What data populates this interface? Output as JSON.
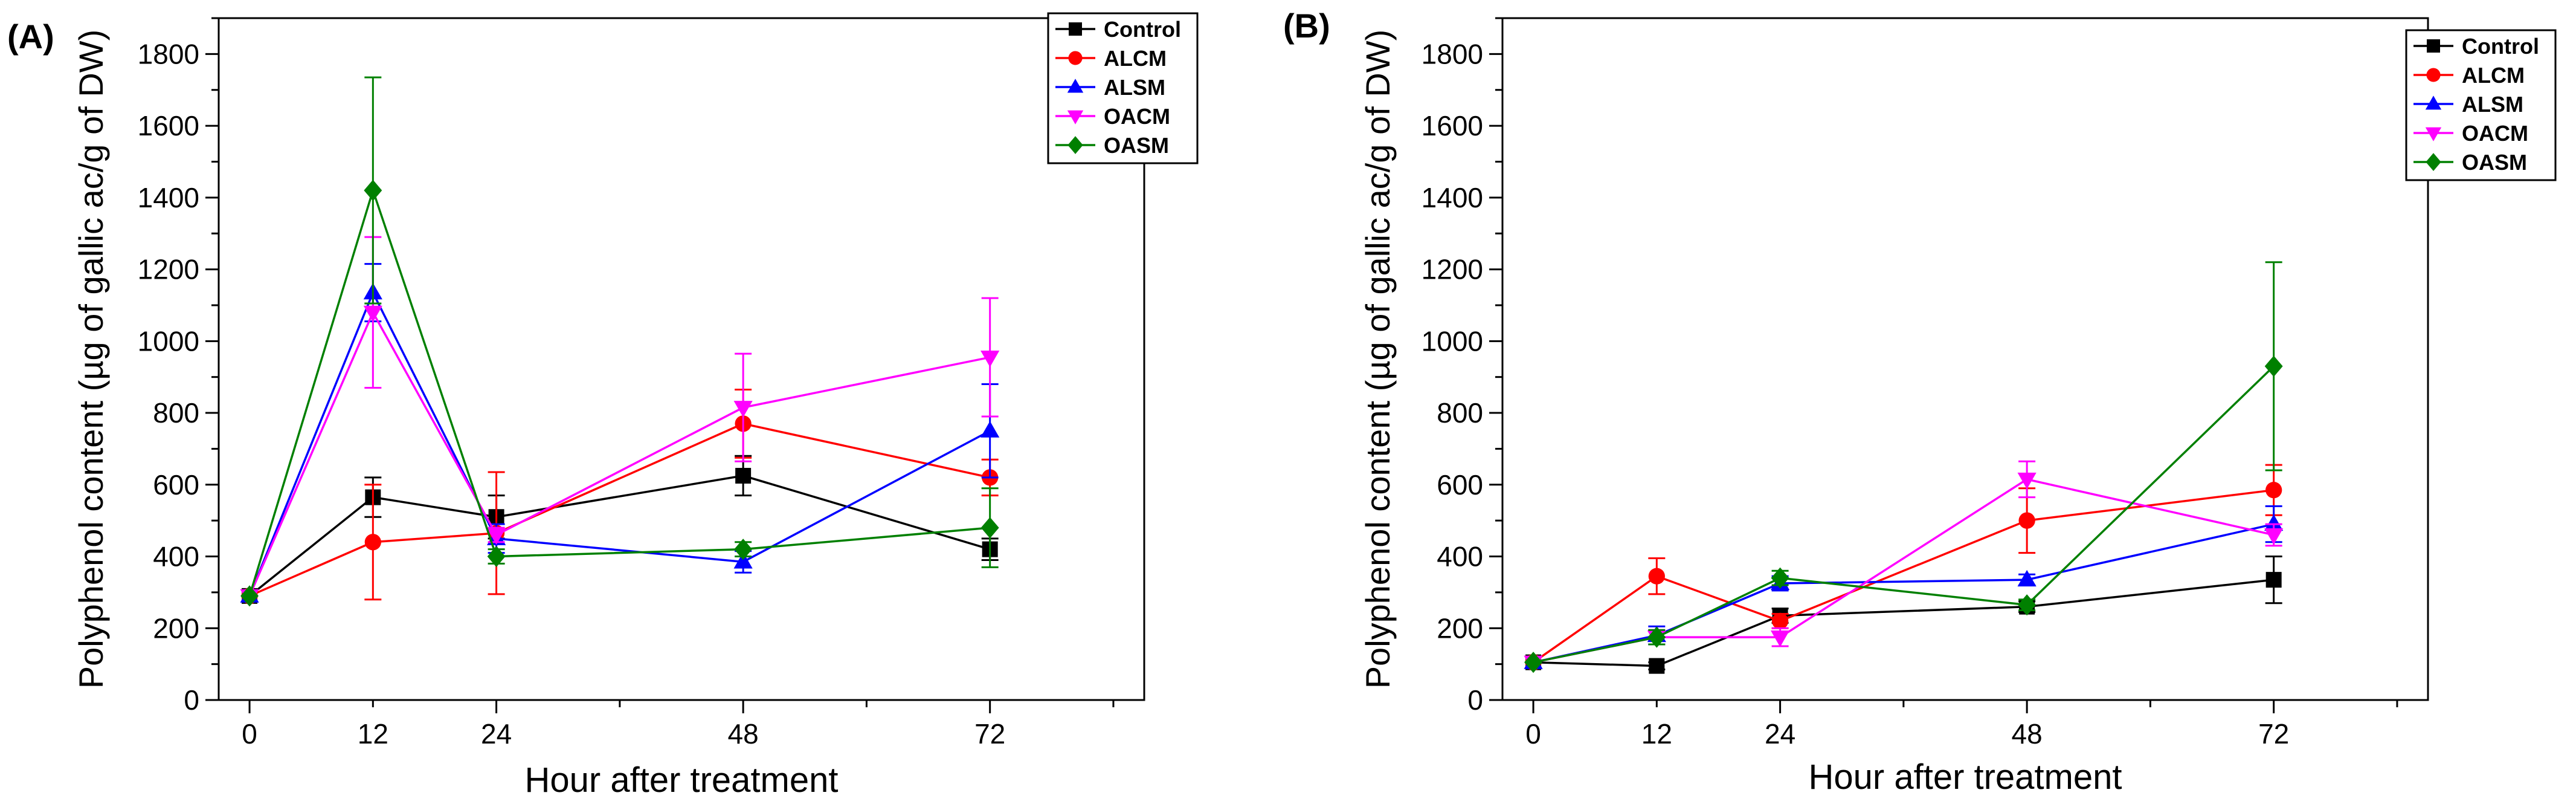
{
  "chart_data": [
    {
      "panel_label": "(A)",
      "type": "line",
      "xlabel": "Hour after treatment",
      "ylabel": "Polyphenol content (µg of gallic ac/g of DW)",
      "x": [
        0,
        12,
        24,
        48,
        72
      ],
      "x_tick_labels": [
        "0",
        "12",
        "24",
        "48",
        "72"
      ],
      "ylim": [
        0,
        1900
      ],
      "y_ticks": [
        0,
        200,
        400,
        600,
        800,
        1000,
        1200,
        1400,
        1600,
        1800
      ],
      "y_tick_labels": [
        "0",
        "200",
        "400",
        "600",
        "800",
        "1000",
        "1200",
        "1400",
        "1600",
        "1800"
      ],
      "legend_position": "top-right",
      "series": [
        {
          "name": "Control",
          "color": "#000000",
          "marker": "square",
          "values": [
            290,
            565,
            510,
            625,
            420
          ],
          "errors": [
            0,
            55,
            60,
            55,
            30
          ]
        },
        {
          "name": "ALCM",
          "color": "#ff0000",
          "marker": "circle",
          "values": [
            290,
            440,
            465,
            770,
            620
          ],
          "errors": [
            0,
            160,
            170,
            95,
            50
          ]
        },
        {
          "name": "ALSM",
          "color": "#0000ff",
          "marker": "triangle-up",
          "values": [
            290,
            1135,
            450,
            385,
            750
          ],
          "errors": [
            0,
            80,
            40,
            30,
            130
          ]
        },
        {
          "name": "OACM",
          "color": "#ff00ff",
          "marker": "triangle-down",
          "values": [
            290,
            1080,
            460,
            815,
            955
          ],
          "errors": [
            0,
            210,
            20,
            150,
            165
          ]
        },
        {
          "name": "OASM",
          "color": "#008000",
          "marker": "diamond",
          "values": [
            290,
            1420,
            400,
            420,
            480
          ],
          "errors": [
            0,
            315,
            20,
            20,
            110
          ]
        }
      ]
    },
    {
      "panel_label": "(B)",
      "type": "line",
      "xlabel": "Hour after treatment",
      "ylabel": "Polyphenol content (µg of gallic ac/g of DW)",
      "x": [
        0,
        12,
        24,
        48,
        72
      ],
      "x_tick_labels": [
        "0",
        "12",
        "24",
        "48",
        "72"
      ],
      "ylim": [
        0,
        1900
      ],
      "y_ticks": [
        0,
        200,
        400,
        600,
        800,
        1000,
        1200,
        1400,
        1600,
        1800
      ],
      "y_tick_labels": [
        "0",
        "200",
        "400",
        "600",
        "800",
        "1000",
        "1200",
        "1400",
        "1600",
        "1800"
      ],
      "legend_position": "top-right",
      "series": [
        {
          "name": "Control",
          "color": "#000000",
          "marker": "square",
          "values": [
            105,
            95,
            235,
            260,
            335
          ],
          "errors": [
            0,
            10,
            20,
            15,
            65
          ]
        },
        {
          "name": "ALCM",
          "color": "#ff0000",
          "marker": "circle",
          "values": [
            105,
            345,
            220,
            500,
            585
          ],
          "errors": [
            0,
            50,
            20,
            90,
            70
          ]
        },
        {
          "name": "ALSM",
          "color": "#0000ff",
          "marker": "triangle-up",
          "values": [
            105,
            180,
            325,
            335,
            490
          ],
          "errors": [
            0,
            25,
            20,
            15,
            50
          ]
        },
        {
          "name": "OACM",
          "color": "#ff00ff",
          "marker": "triangle-down",
          "values": [
            105,
            175,
            175,
            615,
            460
          ],
          "errors": [
            0,
            20,
            25,
            50,
            30
          ]
        },
        {
          "name": "OASM",
          "color": "#008000",
          "marker": "diamond",
          "values": [
            105,
            175,
            340,
            265,
            930
          ],
          "errors": [
            0,
            20,
            20,
            15,
            290
          ]
        }
      ]
    }
  ]
}
